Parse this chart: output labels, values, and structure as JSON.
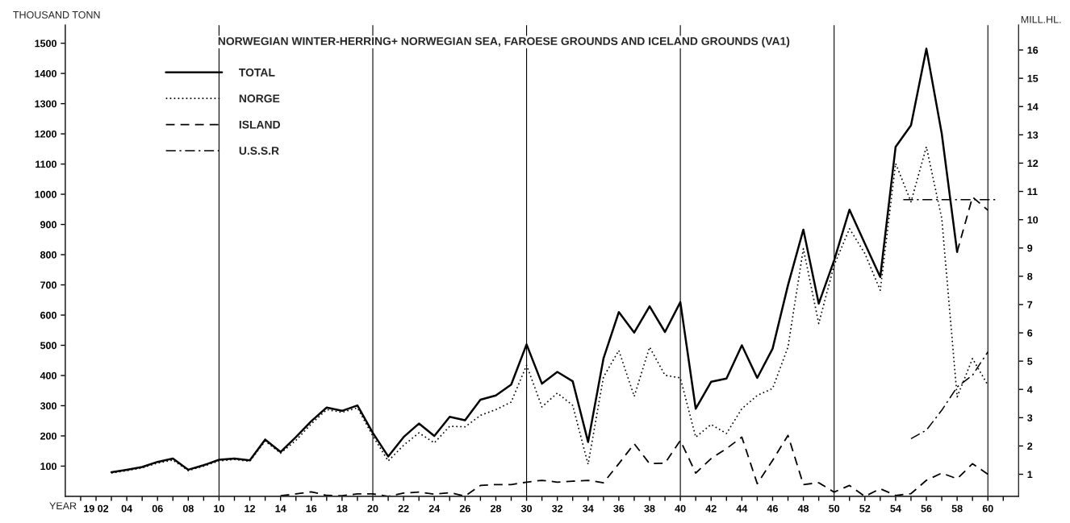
{
  "chart_data": {
    "type": "line",
    "title": "NORWEGIAN WINTER-HERRING+ NORWEGIAN SEA, FAROESE GROUNDS AND ICELAND GROUNDS (VA1)",
    "xlabel": "YEAR",
    "ylabel": "THOUSAND TONN",
    "y2label": "MILL.HL.",
    "xlim": [
      1900,
      1962
    ],
    "ylim": [
      0,
      1560
    ],
    "y2lim": [
      0.22,
      16.88
    ],
    "xticks": [
      {
        "value": 1901,
        "label": null
      },
      {
        "value": 1902,
        "label": "19 02"
      },
      {
        "value": 1903,
        "label": null
      },
      {
        "value": 1904,
        "label": "04"
      },
      {
        "value": 1905,
        "label": null
      },
      {
        "value": 1906,
        "label": "06"
      },
      {
        "value": 1907,
        "label": null
      },
      {
        "value": 1908,
        "label": "08"
      },
      {
        "value": 1909,
        "label": null
      },
      {
        "value": 1910,
        "label": "10"
      },
      {
        "value": 1911,
        "label": null
      },
      {
        "value": 1912,
        "label": "12"
      },
      {
        "value": 1913,
        "label": null
      },
      {
        "value": 1914,
        "label": "14"
      },
      {
        "value": 1915,
        "label": null
      },
      {
        "value": 1916,
        "label": "16"
      },
      {
        "value": 1917,
        "label": null
      },
      {
        "value": 1918,
        "label": "18"
      },
      {
        "value": 1919,
        "label": null
      },
      {
        "value": 1920,
        "label": "20"
      },
      {
        "value": 1921,
        "label": null
      },
      {
        "value": 1922,
        "label": "22"
      },
      {
        "value": 1923,
        "label": null
      },
      {
        "value": 1924,
        "label": "24"
      },
      {
        "value": 1925,
        "label": null
      },
      {
        "value": 1926,
        "label": "26"
      },
      {
        "value": 1927,
        "label": null
      },
      {
        "value": 1928,
        "label": "28"
      },
      {
        "value": 1929,
        "label": null
      },
      {
        "value": 1930,
        "label": "30"
      },
      {
        "value": 1931,
        "label": null
      },
      {
        "value": 1932,
        "label": "32"
      },
      {
        "value": 1933,
        "label": null
      },
      {
        "value": 1934,
        "label": "34"
      },
      {
        "value": 1935,
        "label": null
      },
      {
        "value": 1936,
        "label": "36"
      },
      {
        "value": 1937,
        "label": null
      },
      {
        "value": 1938,
        "label": "38"
      },
      {
        "value": 1939,
        "label": null
      },
      {
        "value": 1940,
        "label": "40"
      },
      {
        "value": 1941,
        "label": null
      },
      {
        "value": 1942,
        "label": "42"
      },
      {
        "value": 1943,
        "label": null
      },
      {
        "value": 1944,
        "label": "44"
      },
      {
        "value": 1945,
        "label": null
      },
      {
        "value": 1946,
        "label": "46"
      },
      {
        "value": 1947,
        "label": null
      },
      {
        "value": 1948,
        "label": "48"
      },
      {
        "value": 1949,
        "label": null
      },
      {
        "value": 1950,
        "label": "50"
      },
      {
        "value": 1951,
        "label": null
      },
      {
        "value": 1952,
        "label": "52"
      },
      {
        "value": 1953,
        "label": null
      },
      {
        "value": 1954,
        "label": "54"
      },
      {
        "value": 1955,
        "label": null
      },
      {
        "value": 1956,
        "label": "56"
      },
      {
        "value": 1957,
        "label": null
      },
      {
        "value": 1958,
        "label": "58"
      },
      {
        "value": 1959,
        "label": null
      },
      {
        "value": 1960,
        "label": "60"
      },
      {
        "value": 1961,
        "label": null
      }
    ],
    "yticks": [
      100,
      200,
      300,
      400,
      500,
      600,
      700,
      800,
      900,
      1000,
      1100,
      1200,
      1300,
      1400,
      1500
    ],
    "y2ticks": [
      1,
      2,
      3,
      4,
      5,
      6,
      7,
      8,
      9,
      10,
      11,
      12,
      13,
      14,
      15,
      16
    ],
    "grid": false,
    "legend": "top left",
    "ref_lines": [
      {
        "axis": "x",
        "value": 1910
      },
      {
        "axis": "x",
        "value": 1920
      },
      {
        "axis": "x",
        "value": 1930
      },
      {
        "axis": "x",
        "value": 1940
      },
      {
        "axis": "x",
        "value": 1950
      },
      {
        "axis": "x",
        "value": 1960
      }
    ],
    "series": [
      {
        "name": "TOTAL",
        "color": "#000000",
        "line_style": "solid",
        "x": [
          1903,
          1904,
          1905,
          1906,
          1907,
          1908,
          1909,
          1910,
          1911,
          1912,
          1913,
          1914,
          1915,
          1916,
          1917,
          1918,
          1919,
          1920,
          1921,
          1922,
          1923,
          1924,
          1925,
          1926,
          1927,
          1928,
          1929,
          1930,
          1931,
          1932,
          1933,
          1934,
          1935,
          1936,
          1937,
          1938,
          1939,
          1940,
          1941,
          1942,
          1943,
          1944,
          1945,
          1946,
          1947,
          1948,
          1949,
          1950,
          1951,
          1952,
          1953,
          1954,
          1955,
          1956,
          1957,
          1958
        ],
        "values": [
          80,
          88,
          97,
          114,
          125,
          88,
          103,
          121,
          125,
          119,
          188,
          147,
          196,
          249,
          294,
          283,
          301,
          210,
          132,
          196,
          241,
          200,
          263,
          252,
          320,
          334,
          370,
          503,
          373,
          412,
          381,
          180,
          456,
          610,
          542,
          629,
          544,
          643,
          290,
          379,
          390,
          500,
          392,
          489,
          699,
          883,
          638,
          781,
          949,
          837,
          726,
          1157,
          1228,
          1482,
          1201,
          809
        ]
      },
      {
        "name": "NORGE",
        "color": "#000000",
        "line_style": "dotted",
        "x": [
          1903,
          1904,
          1905,
          1906,
          1907,
          1908,
          1909,
          1910,
          1911,
          1912,
          1913,
          1914,
          1915,
          1916,
          1917,
          1918,
          1919,
          1920,
          1921,
          1922,
          1923,
          1924,
          1925,
          1926,
          1927,
          1928,
          1929,
          1930,
          1931,
          1932,
          1933,
          1934,
          1935,
          1936,
          1937,
          1938,
          1939,
          1940,
          1941,
          1942,
          1943,
          1944,
          1945,
          1946,
          1947,
          1948,
          1949,
          1950,
          1951,
          1952,
          1953,
          1954,
          1955,
          1956,
          1957,
          1958,
          1959,
          1960
        ],
        "values": [
          77,
          85,
          94,
          110,
          120,
          85,
          100,
          117,
          122,
          116,
          183,
          143,
          185,
          240,
          287,
          278,
          293,
          200,
          117,
          169,
          210,
          177,
          232,
          230,
          268,
          287,
          312,
          434,
          296,
          342,
          301,
          106,
          395,
          483,
          331,
          494,
          401,
          392,
          196,
          238,
          208,
          290,
          334,
          357,
          494,
          820,
          572,
          765,
          886,
          804,
          682,
          1102,
          975,
          1157,
          920,
          329,
          456,
          368
        ]
      },
      {
        "name": "ISLAND",
        "color": "#000000",
        "line_style": "dashed",
        "x": [
          1914,
          1915,
          1916,
          1917,
          1918,
          1919,
          1920,
          1921,
          1922,
          1923,
          1924,
          1925,
          1926,
          1927,
          1928,
          1929,
          1930,
          1931,
          1932,
          1933,
          1934,
          1935,
          1936,
          1937,
          1938,
          1939,
          1940,
          1941,
          1942,
          1943,
          1944,
          1945,
          1946,
          1947,
          1948,
          1949,
          1950,
          1951,
          1952,
          1953,
          1954,
          1955,
          1956,
          1957,
          1958,
          1959,
          1960
        ],
        "values": [
          2,
          8,
          15,
          3,
          2,
          8,
          8,
          0,
          11,
          14,
          7,
          12,
          1,
          36,
          39,
          39,
          47,
          53,
          47,
          50,
          53,
          45,
          108,
          174,
          108,
          110,
          185,
          77,
          125,
          158,
          196,
          42,
          119,
          202,
          39,
          45,
          14,
          36,
          0,
          25,
          3,
          9,
          53,
          77,
          58,
          108,
          73
        ]
      },
      {
        "name": "U.S.S.R",
        "color": "#000000",
        "line_style": "dashdot",
        "x": [
          1955,
          1956,
          1957,
          1958,
          1959,
          1960
        ],
        "values": [
          191,
          219,
          285,
          362,
          401,
          478
        ]
      },
      {
        "color": "#000000",
        "line_style": "dashed",
        "x": [
          1958,
          1959,
          1960
        ],
        "values": [
          809,
          991,
          947
        ]
      },
      {
        "color": "#000000",
        "line_style": "dashdot",
        "x": [
          1954.5,
          1960.5
        ],
        "values": [
          982,
          982
        ]
      }
    ]
  }
}
